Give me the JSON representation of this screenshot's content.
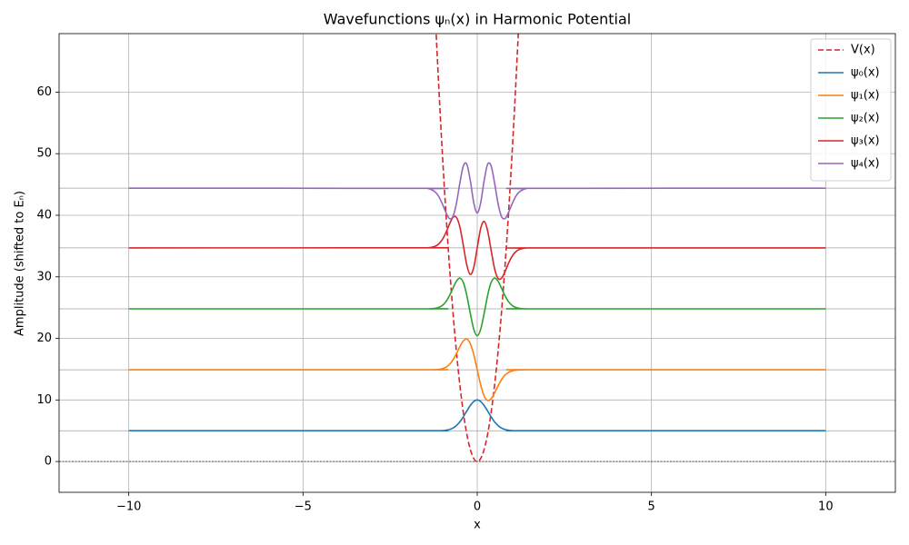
{
  "chart_data": {
    "type": "line",
    "title": "Wavefunctions ψₙ(x) in Harmonic Potential",
    "x_label": "x",
    "y_label": "Amplitude (shifted to Eₙ)",
    "xlim": [
      -12,
      12
    ],
    "ylim": [
      -5,
      69.5
    ],
    "xticks": [
      {
        "value": -10,
        "label": "−10"
      },
      {
        "value": -5,
        "label": "−5"
      },
      0,
      5,
      10
    ],
    "yticks": [
      0,
      10,
      20,
      30,
      40,
      50,
      60
    ],
    "grid": true,
    "legend": "upper right",
    "energy_levels": [
      5,
      14.9,
      24.8,
      34.7,
      44.4
    ],
    "energy_level_color": "#a0a0a0",
    "zero_line": true,
    "series": [
      {
        "name": "V(x)",
        "color": "#d62728",
        "dashed": true,
        "x": [
          -1.2,
          -1.1,
          -1.0,
          -0.9,
          -0.8,
          -0.7,
          -0.6,
          -0.5,
          -0.4,
          -0.3,
          -0.2,
          -0.1,
          0,
          0.1,
          0.2,
          0.3,
          0.4,
          0.5,
          0.6,
          0.7,
          0.8,
          0.9,
          1.0,
          1.1,
          1.2
        ],
        "values": [
          72,
          60.5,
          50,
          40.5,
          32,
          24.5,
          18,
          12.5,
          8,
          4.5,
          2,
          0.5,
          0,
          0.5,
          2,
          4.5,
          8,
          12.5,
          18,
          24.5,
          32,
          40.5,
          50,
          60.5,
          72
        ]
      },
      {
        "name": "ψ₀(x)",
        "color": "#1f77b4",
        "x": [
          -10,
          -1.5,
          -1.4,
          -1.3,
          -1.2,
          -1.1,
          -1.0,
          -0.9,
          -0.8,
          -0.7,
          -0.6,
          -0.5,
          -0.4,
          -0.3,
          -0.2,
          -0.1,
          0,
          0.1,
          0.2,
          0.3,
          0.4,
          0.5,
          0.6,
          0.7,
          0.8,
          0.9,
          1.0,
          1.1,
          1.2,
          1.3,
          1.4,
          1.5,
          10
        ],
        "values": [
          5,
          5,
          5,
          5,
          5,
          5.01,
          5.03,
          5.09,
          5.2,
          5.43,
          5.83,
          6.43,
          7.25,
          8.19,
          9.09,
          9.76,
          10,
          9.76,
          9.09,
          8.19,
          7.25,
          6.43,
          5.83,
          5.43,
          5.2,
          5.09,
          5.03,
          5.01,
          5,
          5,
          5,
          5,
          5
        ]
      },
      {
        "name": "ψ₁(x)",
        "color": "#ff7f0e",
        "x": [
          -10,
          -1.5,
          -1.4,
          -1.3,
          -1.2,
          -1.1,
          -1.0,
          -0.9,
          -0.8,
          -0.7,
          -0.6,
          -0.5,
          -0.4,
          -0.3,
          -0.2,
          -0.1,
          0,
          0.1,
          0.2,
          0.3,
          0.4,
          0.5,
          0.6,
          0.7,
          0.8,
          0.9,
          1.0,
          1.1,
          1.2,
          1.3,
          1.4,
          1.5,
          10
        ],
        "values": [
          14.9,
          14.9,
          14.9,
          14.91,
          14.92,
          14.97,
          15.08,
          15.31,
          15.75,
          16.47,
          17.48,
          18.64,
          19.58,
          19.89,
          19.17,
          17.38,
          14.9,
          12.42,
          10.63,
          9.91,
          10.22,
          11.16,
          12.32,
          13.33,
          14.05,
          14.49,
          14.72,
          14.83,
          14.88,
          14.89,
          14.9,
          14.9,
          14.9
        ]
      },
      {
        "name": "ψ₂(x)",
        "color": "#2ca02c",
        "x": [
          -10,
          -1.5,
          -1.4,
          -1.3,
          -1.2,
          -1.1,
          -1.0,
          -0.9,
          -0.8,
          -0.7,
          -0.6,
          -0.5,
          -0.4,
          -0.3,
          -0.2,
          -0.1,
          0,
          0.1,
          0.2,
          0.3,
          0.4,
          0.5,
          0.6,
          0.7,
          0.8,
          0.9,
          1.0,
          1.1,
          1.2,
          1.3,
          1.4,
          1.5,
          10
        ],
        "values": [
          24.8,
          24.8,
          24.81,
          24.83,
          24.89,
          25.04,
          25.36,
          25.95,
          26.9,
          28.11,
          29.26,
          29.8,
          29.1,
          27.02,
          24.09,
          21.49,
          20.44,
          21.49,
          24.09,
          27.02,
          29.1,
          29.8,
          29.26,
          28.11,
          26.9,
          25.95,
          25.36,
          25.04,
          24.89,
          24.83,
          24.81,
          24.8,
          24.8
        ]
      },
      {
        "name": "ψ₃(x)",
        "color": "#d62728",
        "x": [
          -10,
          -1.5,
          -1.4,
          -1.3,
          -1.2,
          -1.1,
          -1.0,
          -0.9,
          -0.8,
          -0.7,
          -0.6,
          -0.5,
          -0.4,
          -0.3,
          -0.2,
          -0.1,
          0,
          0.1,
          0.2,
          0.3,
          0.4,
          0.5,
          0.6,
          0.7,
          0.8,
          0.9,
          1.0,
          1.1,
          1.2,
          1.3,
          1.4,
          1.5,
          10
        ],
        "values": [
          34.7,
          34.71,
          34.73,
          34.8,
          34.98,
          35.36,
          36.07,
          37.17,
          38.52,
          39.62,
          39.67,
          38.13,
          35.13,
          31.95,
          30.4,
          31.52,
          34.7,
          37.88,
          39.0,
          37.45,
          34.27,
          31.27,
          29.73,
          29.78,
          30.88,
          32.23,
          33.33,
          34.04,
          34.42,
          34.6,
          34.67,
          34.69,
          34.7
        ]
      },
      {
        "name": "ψ₄(x)",
        "color": "#9467bd",
        "x": [
          -10,
          -1.5,
          -1.4,
          -1.3,
          -1.2,
          -1.1,
          -1.0,
          -0.9,
          -0.8,
          -0.7,
          -0.6,
          -0.5,
          -0.4,
          -0.3,
          -0.2,
          -0.1,
          0,
          0.1,
          0.2,
          0.3,
          0.4,
          0.5,
          0.6,
          0.7,
          0.8,
          0.9,
          1.0,
          1.1,
          1.2,
          1.3,
          1.4,
          1.5,
          10
        ],
        "values": [
          44.4,
          44.37,
          44.3,
          44.13,
          43.74,
          43.0,
          41.84,
          40.48,
          39.48,
          39.75,
          41.83,
          45.17,
          47.99,
          48.3,
          45.67,
          42.05,
          40.38,
          42.05,
          45.67,
          48.3,
          47.99,
          45.17,
          41.83,
          39.75,
          39.48,
          40.48,
          41.84,
          43.0,
          43.74,
          44.13,
          44.3,
          44.37,
          44.4
        ]
      }
    ]
  }
}
